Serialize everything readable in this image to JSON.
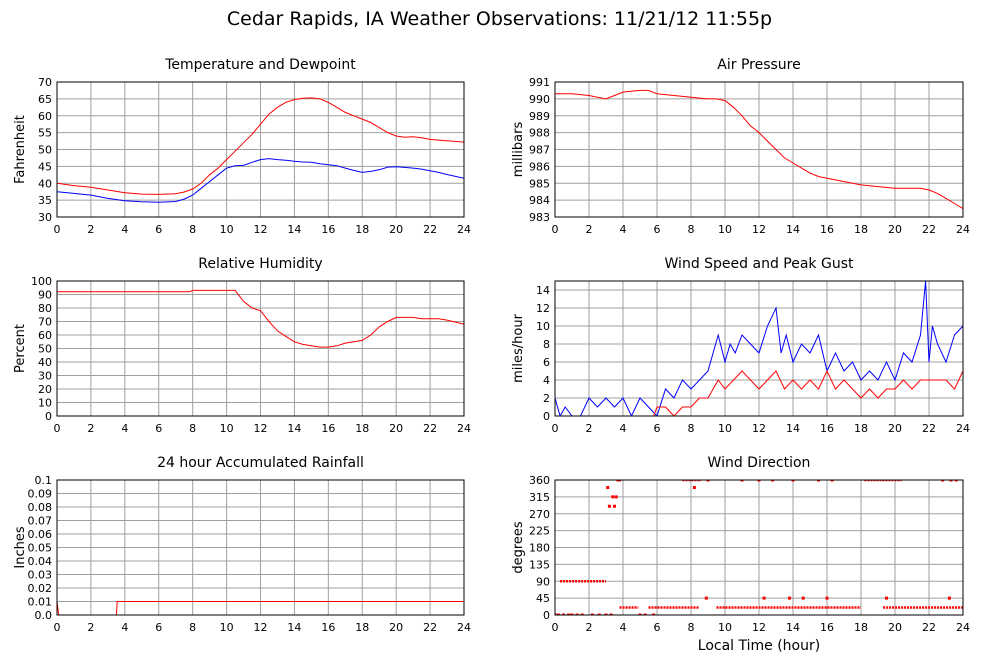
{
  "title": "Cedar Rapids, IA Weather Observations: 11/21/12 11:55p",
  "colors": {
    "red": "#ff0000",
    "blue": "#0000ff",
    "grid": "#a0a0a0",
    "frame": "#000000"
  },
  "chart_data": [
    {
      "id": "temp",
      "type": "line",
      "title": "Temperature and Dewpoint",
      "xlabel": "",
      "ylabel": "Fahrenheit",
      "xlim": [
        0,
        24
      ],
      "ylim": [
        30,
        70
      ],
      "xticks": [
        0,
        2,
        4,
        6,
        8,
        10,
        12,
        14,
        16,
        18,
        20,
        22,
        24
      ],
      "yticks": [
        30,
        35,
        40,
        45,
        50,
        55,
        60,
        65,
        70
      ],
      "grid": true,
      "series": [
        {
          "color": "#ff0000",
          "x": [
            0,
            1,
            2,
            3,
            4,
            5,
            6,
            7,
            7.5,
            8,
            8.5,
            9,
            9.5,
            10,
            10.5,
            11,
            11.5,
            12,
            12.5,
            13,
            13.5,
            14,
            14.5,
            15,
            15.5,
            16,
            16.5,
            17,
            17.5,
            18,
            18.5,
            19,
            19.5,
            20,
            20.5,
            21,
            21.5,
            22,
            22.5,
            23,
            24
          ],
          "y": [
            40,
            39.3,
            38.8,
            38,
            37.2,
            36.8,
            36.7,
            36.9,
            37.4,
            38.3,
            40,
            42.5,
            44.5,
            47,
            49.5,
            52,
            54.5,
            57.5,
            60.5,
            62.5,
            64,
            64.8,
            65.2,
            65.3,
            65,
            64,
            62.5,
            61,
            60,
            59,
            58,
            56.5,
            55,
            54,
            53.6,
            53.8,
            53.5,
            53,
            52.8,
            52.6,
            52.2
          ]
        },
        {
          "color": "#0000ff",
          "x": [
            0,
            1,
            2,
            3,
            4,
            5,
            6,
            7,
            7.5,
            8,
            8.5,
            9,
            9.5,
            10,
            10.5,
            11,
            11.5,
            12,
            12.5,
            13,
            13.5,
            14,
            14.5,
            15,
            15.5,
            16,
            16.5,
            17,
            17.5,
            18,
            18.5,
            19,
            19.5,
            20,
            20.5,
            21,
            21.5,
            22,
            22.5,
            23,
            24
          ],
          "y": [
            37.5,
            37,
            36.5,
            35.5,
            34.8,
            34.5,
            34.4,
            34.6,
            35.3,
            36.5,
            38.5,
            40.5,
            42.5,
            44.5,
            45.2,
            45.3,
            46.2,
            47,
            47.3,
            47,
            46.8,
            46.5,
            46.3,
            46.2,
            45.8,
            45.5,
            45.2,
            44.5,
            43.8,
            43.2,
            43.5,
            44,
            44.8,
            44.9,
            44.7,
            44.5,
            44.2,
            43.7,
            43.2,
            42.6,
            41.5
          ]
        }
      ]
    },
    {
      "id": "pressure",
      "type": "line",
      "title": "Air Pressure",
      "xlabel": "",
      "ylabel": "millibars",
      "xlim": [
        0,
        24
      ],
      "ylim": [
        983,
        991
      ],
      "xticks": [
        0,
        2,
        4,
        6,
        8,
        10,
        12,
        14,
        16,
        18,
        20,
        22,
        24
      ],
      "yticks": [
        983,
        984,
        985,
        986,
        987,
        988,
        989,
        990,
        991
      ],
      "grid": true,
      "series": [
        {
          "color": "#ff0000",
          "x": [
            0,
            1,
            2,
            2.5,
            3,
            3.5,
            4,
            5,
            5.5,
            6,
            7,
            8,
            9,
            9.5,
            10,
            10.5,
            11,
            11.5,
            12,
            12.5,
            13,
            13.5,
            14,
            14.5,
            15,
            15.5,
            16,
            16.5,
            17,
            17.5,
            18,
            19,
            20,
            21,
            21.5,
            22,
            22.5,
            23,
            23.5,
            24
          ],
          "y": [
            990.3,
            990.3,
            990.2,
            990.1,
            990.0,
            990.2,
            990.4,
            990.5,
            990.5,
            990.3,
            990.2,
            990.1,
            990.0,
            990.0,
            989.9,
            989.5,
            989.0,
            988.4,
            988.0,
            987.5,
            987.0,
            986.5,
            986.2,
            985.9,
            985.6,
            985.4,
            985.3,
            985.2,
            985.1,
            985.0,
            984.9,
            984.8,
            984.7,
            984.7,
            984.7,
            984.6,
            984.4,
            984.1,
            983.8,
            983.5
          ]
        }
      ]
    },
    {
      "id": "humidity",
      "type": "line",
      "title": "Relative Humidity",
      "xlabel": "",
      "ylabel": "Percent",
      "xlim": [
        0,
        24
      ],
      "ylim": [
        0,
        100
      ],
      "xticks": [
        0,
        2,
        4,
        6,
        8,
        10,
        12,
        14,
        16,
        18,
        20,
        22,
        24
      ],
      "yticks": [
        0,
        10,
        20,
        30,
        40,
        50,
        60,
        70,
        80,
        90,
        100
      ],
      "grid": true,
      "series": [
        {
          "color": "#ff0000",
          "x": [
            0,
            2,
            4,
            6,
            7.8,
            8,
            8.5,
            9,
            10,
            10.5,
            11,
            11.5,
            12,
            12.5,
            13,
            13.5,
            14,
            14.5,
            15,
            15.5,
            16,
            16.5,
            17,
            17.5,
            18,
            18.5,
            19,
            19.5,
            20,
            20.5,
            21,
            21.5,
            22,
            22.5,
            23,
            24
          ],
          "y": [
            92,
            92,
            92,
            92,
            92,
            93,
            93,
            93,
            93,
            93,
            85,
            80,
            78,
            70,
            63,
            59,
            55,
            53,
            52,
            51,
            51,
            52,
            54,
            55,
            56,
            60,
            66,
            70,
            73,
            73,
            73,
            72,
            72,
            72,
            71,
            68
          ]
        }
      ]
    },
    {
      "id": "wind",
      "type": "line",
      "title": "Wind Speed and Peak Gust",
      "xlabel": "",
      "ylabel": "miles/hour",
      "xlim": [
        0,
        24
      ],
      "ylim": [
        0,
        15
      ],
      "xticks": [
        0,
        2,
        4,
        6,
        8,
        10,
        12,
        14,
        16,
        18,
        20,
        22,
        24
      ],
      "yticks": [
        0,
        2,
        4,
        6,
        8,
        10,
        12,
        14
      ],
      "grid": true,
      "series": [
        {
          "color": "#0000ff",
          "x": [
            0,
            0.3,
            0.6,
            1,
            1.5,
            2,
            2.5,
            3,
            3.5,
            4,
            4.5,
            5,
            5.5,
            6,
            6.5,
            7,
            7.5,
            8,
            8.5,
            9,
            9.3,
            9.6,
            10,
            10.3,
            10.6,
            11,
            11.5,
            12,
            12.5,
            13,
            13.3,
            13.6,
            14,
            14.5,
            15,
            15.5,
            16,
            16.5,
            17,
            17.5,
            18,
            18.5,
            19,
            19.5,
            20,
            20.5,
            21,
            21.5,
            21.8,
            22,
            22.2,
            22.5,
            23,
            23.5,
            24
          ],
          "y": [
            2,
            0,
            1,
            0,
            0,
            2,
            1,
            2,
            1,
            2,
            0,
            2,
            1,
            0,
            3,
            2,
            4,
            3,
            4,
            5,
            7,
            9,
            6,
            8,
            7,
            9,
            8,
            7,
            10,
            12,
            7,
            9,
            6,
            8,
            7,
            9,
            5,
            7,
            5,
            6,
            4,
            5,
            4,
            6,
            4,
            7,
            6,
            9,
            15,
            6,
            10,
            8,
            6,
            9,
            10
          ]
        },
        {
          "color": "#ff0000",
          "x": [
            5.8,
            6,
            6.5,
            7,
            7.5,
            8,
            8.5,
            9,
            9.3,
            9.6,
            10,
            10.5,
            11,
            11.5,
            12,
            12.5,
            13,
            13.5,
            14,
            14.5,
            15,
            15.5,
            16,
            16.5,
            17,
            17.5,
            18,
            18.5,
            19,
            19.5,
            20,
            20.5,
            21,
            21.5,
            22,
            22.5,
            23,
            23.5,
            24
          ],
          "y": [
            0,
            1,
            1,
            0,
            1,
            1,
            2,
            2,
            3,
            4,
            3,
            4,
            5,
            4,
            3,
            4,
            5,
            3,
            4,
            3,
            4,
            3,
            5,
            3,
            4,
            3,
            2,
            3,
            2,
            3,
            3,
            4,
            3,
            4,
            4,
            4,
            4,
            3,
            5
          ]
        }
      ]
    },
    {
      "id": "rain",
      "type": "line",
      "title": "24 hour Accumulated Rainfall",
      "xlabel": "",
      "ylabel": "Inches",
      "xlim": [
        0,
        24
      ],
      "ylim": [
        0,
        0.1
      ],
      "xticks": [
        0,
        2,
        4,
        6,
        8,
        10,
        12,
        14,
        16,
        18,
        20,
        22,
        24
      ],
      "yticks": [
        0.0,
        0.01,
        0.02,
        0.03,
        0.04,
        0.05,
        0.06,
        0.07,
        0.08,
        0.09,
        0.1
      ],
      "ytick_labels": [
        "0.0",
        "0.01",
        "0.02",
        "0.03",
        "0.04",
        "0.05",
        "0.06",
        "0.07",
        "0.08",
        "0.09",
        "0.1"
      ],
      "grid": true,
      "series": [
        {
          "color": "#ff0000",
          "x": [
            0,
            0.1,
            3.5,
            3.55,
            24
          ],
          "y": [
            0.01,
            0,
            0,
            0.01,
            0.01
          ]
        }
      ]
    },
    {
      "id": "direction",
      "type": "scatter",
      "title": "Wind Direction",
      "xlabel": "Local Time (hour)",
      "ylabel": "degrees",
      "xlim": [
        0,
        24
      ],
      "ylim": [
        0,
        360
      ],
      "xticks": [
        0,
        2,
        4,
        6,
        8,
        10,
        12,
        14,
        16,
        18,
        20,
        22,
        24
      ],
      "yticks": [
        0,
        45,
        90,
        135,
        180,
        225,
        270,
        315,
        360
      ],
      "grid": true,
      "segments": [
        {
          "color": "#ff0000",
          "x": [
            0.3,
            3.0
          ],
          "y": 90
        },
        {
          "color": "#ff0000",
          "x": [
            3.8,
            4.9
          ],
          "y": 20
        },
        {
          "color": "#ff0000",
          "x": [
            5.5,
            8.5
          ],
          "y": 20
        },
        {
          "color": "#ff0000",
          "x": [
            9.5,
            18.0
          ],
          "y": 20
        },
        {
          "color": "#ff0000",
          "x": [
            19.3,
            24.0
          ],
          "y": 20
        },
        {
          "color": "#ff0000",
          "x": [
            18.2,
            20.4
          ],
          "y": 360
        },
        {
          "color": "#ff0000",
          "x": [
            7.5,
            8.6
          ],
          "y": 360
        }
      ],
      "points": [
        {
          "color": "#ff0000",
          "x": [
            0.0,
            0.2,
            0.5,
            0.8,
            1.0,
            1.3,
            1.6,
            2.2,
            2.6,
            3.0,
            3.3,
            5.0,
            5.3,
            5.8,
            3.1,
            3.2,
            3.5,
            3.6,
            3.4,
            3.7,
            3.8,
            8.2,
            9.0,
            11.0,
            12.0,
            12.8,
            14.0,
            15.5,
            16.3,
            22.8,
            23.3,
            23.6,
            23.2,
            8.9,
            13.8,
            16.0,
            12.3,
            14.6,
            19.5
          ],
          "y": [
            0,
            0,
            0,
            0,
            0,
            0,
            0,
            0,
            0,
            0,
            0,
            0,
            0,
            0,
            340,
            290,
            290,
            315,
            315,
            360,
            360,
            340,
            360,
            360,
            360,
            360,
            360,
            360,
            360,
            360,
            360,
            360,
            45,
            45,
            45,
            45,
            45,
            45,
            45
          ]
        }
      ]
    }
  ]
}
